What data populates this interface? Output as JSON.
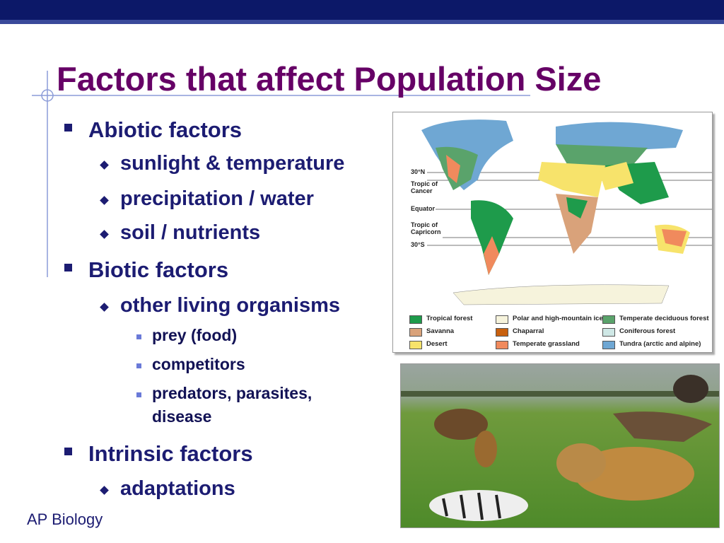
{
  "slide": {
    "title": "Factors that affect Population Size",
    "footer": "AP Biology",
    "bullets": [
      {
        "text": "Abiotic factors",
        "items": [
          {
            "text": "sunlight & temperature"
          },
          {
            "text": "precipitation / water"
          },
          {
            "text": "soil / nutrients"
          }
        ]
      },
      {
        "text": "Biotic factors",
        "items": [
          {
            "text": "other living organisms",
            "items": [
              {
                "text": "prey (food)"
              },
              {
                "text": "competitors"
              },
              {
                "text": "predators, parasites, disease"
              }
            ]
          }
        ]
      },
      {
        "text": "Intrinsic factors",
        "items": [
          {
            "text": "adaptations"
          }
        ]
      }
    ]
  },
  "map": {
    "lat_labels": [
      "30°N",
      "Tropic of Cancer",
      "Equator",
      "Tropic of Capricorn",
      "30°S"
    ],
    "legend": [
      {
        "label": "Tropical forest",
        "color": "#1e9b4b"
      },
      {
        "label": "Savanna",
        "color": "#d9a27a"
      },
      {
        "label": "Desert",
        "color": "#f7e36b"
      },
      {
        "label": "Polar and high-mountain ice",
        "color": "#f6f3dc"
      },
      {
        "label": "Chaparral",
        "color": "#c8600e"
      },
      {
        "label": "Temperate grassland",
        "color": "#f08a5d"
      },
      {
        "label": "Temperate deciduous forest",
        "color": "#5aa36b"
      },
      {
        "label": "Coniferous forest",
        "color": "#cfe8e6"
      },
      {
        "label": "Tundra (arctic and alpine)",
        "color": "#6fa7d3"
      }
    ]
  }
}
